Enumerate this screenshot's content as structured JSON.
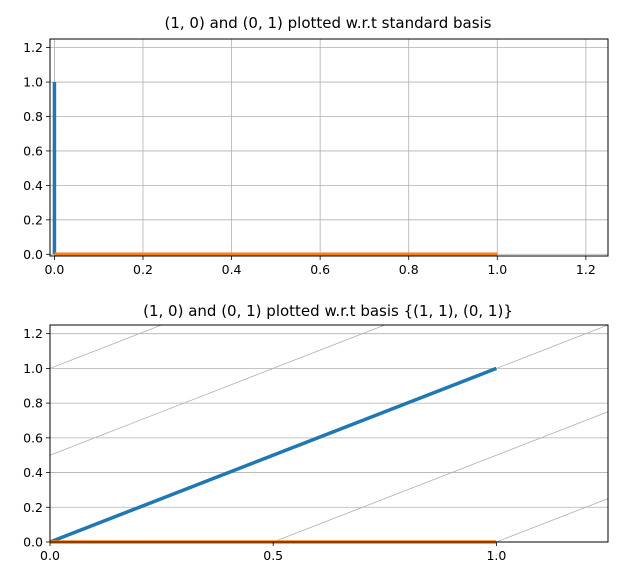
{
  "chart_data": [
    {
      "type": "line",
      "title": "(1, 0) and (0, 1) plotted w.r.t standard basis",
      "xlabel": "",
      "ylabel": "",
      "xlim": [
        -0.01,
        1.25
      ],
      "ylim": [
        -0.01,
        1.25
      ],
      "grid": "standard",
      "xticks": [
        "0.0",
        "0.2",
        "0.4",
        "0.6",
        "0.8",
        "1.0",
        "1.2"
      ],
      "xtick_values": [
        0,
        0.2,
        0.4,
        0.6,
        0.8,
        1.0,
        1.2
      ],
      "yticks": [
        "0.0",
        "0.2",
        "0.4",
        "0.6",
        "0.8",
        "1.0",
        "1.2"
      ],
      "ytick_values": [
        0,
        0.2,
        0.4,
        0.6,
        0.8,
        1.0,
        1.2
      ],
      "series": [
        {
          "color": "#1f77b4",
          "x": [
            0,
            0
          ],
          "y": [
            0,
            1
          ]
        },
        {
          "color": "#ff7f0e",
          "x": [
            0,
            1
          ],
          "y": [
            0,
            0
          ]
        }
      ]
    },
    {
      "type": "line",
      "title": "(1, 0) and (0, 1) plotted w.r.t basis {(1, 1), (0, 1)}",
      "xlabel": "",
      "ylabel": "",
      "xlim": [
        0,
        1.25
      ],
      "ylim": [
        0,
        1.25
      ],
      "grid": "skewed",
      "grid_basis": [
        [
          1,
          1
        ],
        [
          0,
          1
        ]
      ],
      "xticks": [
        "0.0",
        "0.5",
        "1.0"
      ],
      "xtick_values": [
        0,
        0.5,
        1.0
      ],
      "yticks": [
        "0.0",
        "0.2",
        "0.4",
        "0.6",
        "0.8",
        "1.0",
        "1.2"
      ],
      "ytick_values": [
        0,
        0.2,
        0.4,
        0.6,
        0.8,
        1.0,
        1.2
      ],
      "series": [
        {
          "color": "#1f77b4",
          "x": [
            0,
            1
          ],
          "y": [
            0,
            1
          ]
        },
        {
          "color": "#ff7f0e",
          "x": [
            0,
            1
          ],
          "y": [
            0,
            0
          ]
        }
      ]
    }
  ]
}
